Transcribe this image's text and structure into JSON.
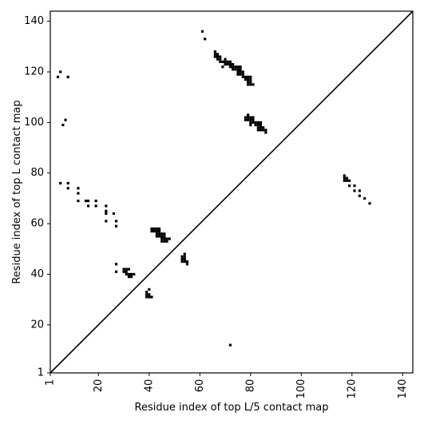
{
  "chart_data": {
    "type": "scatter",
    "title": "",
    "xlabel": "Residue index of top L/5 contact map",
    "ylabel": "Residue index of top L contact map",
    "xlim": [
      1,
      144
    ],
    "ylim": [
      1,
      144
    ],
    "x_ticks": [
      1,
      20,
      40,
      60,
      80,
      100,
      120,
      140
    ],
    "y_ticks": [
      1,
      20,
      40,
      60,
      80,
      100,
      120,
      140
    ],
    "x_tick_labels": [
      "1",
      "20",
      "40",
      "60",
      "80",
      "100",
      "120",
      "140"
    ],
    "y_tick_labels": [
      "1",
      "20",
      "40",
      "60",
      "80",
      "100",
      "120",
      "140"
    ],
    "x_tick_rotation_deg": -90,
    "grid": false,
    "diagonal_line": true,
    "marker": "square",
    "color": "#000000",
    "series": [
      {
        "name": "",
        "description_region": "upper-left triangle (top L contacts)",
        "points": [
          [
            61,
            136
          ],
          [
            62,
            133
          ],
          [
            66,
            128
          ],
          [
            66,
            127
          ],
          [
            67,
            126
          ],
          [
            67,
            127
          ],
          [
            68,
            126
          ],
          [
            66,
            126
          ],
          [
            67,
            125
          ],
          [
            68,
            125
          ],
          [
            68,
            124
          ],
          [
            69,
            124
          ],
          [
            70,
            125
          ],
          [
            70,
            124
          ],
          [
            71,
            124
          ],
          [
            72,
            124
          ],
          [
            70,
            123
          ],
          [
            71,
            123
          ],
          [
            72,
            123
          ],
          [
            73,
            123
          ],
          [
            69,
            122
          ],
          [
            72,
            122
          ],
          [
            73,
            122
          ],
          [
            74,
            122
          ],
          [
            75,
            122
          ],
          [
            76,
            122
          ],
          [
            73,
            121
          ],
          [
            74,
            121
          ],
          [
            75,
            121
          ],
          [
            76,
            121
          ],
          [
            75,
            120
          ],
          [
            76,
            120
          ],
          [
            77,
            120
          ],
          [
            75,
            119
          ],
          [
            76,
            119
          ],
          [
            77,
            119
          ],
          [
            77,
            118
          ],
          [
            78,
            118
          ],
          [
            79,
            118
          ],
          [
            80,
            118
          ],
          [
            78,
            117
          ],
          [
            79,
            117
          ],
          [
            80,
            117
          ],
          [
            79,
            116
          ],
          [
            80,
            116
          ],
          [
            79,
            115
          ],
          [
            80,
            115
          ],
          [
            81,
            115
          ],
          [
            79,
            103
          ],
          [
            78,
            102
          ],
          [
            79,
            102
          ],
          [
            80,
            102
          ],
          [
            81,
            102
          ],
          [
            78,
            101
          ],
          [
            79,
            101
          ],
          [
            80,
            101
          ],
          [
            81,
            101
          ],
          [
            80,
            100
          ],
          [
            81,
            100
          ],
          [
            82,
            100
          ],
          [
            83,
            100
          ],
          [
            84,
            100
          ],
          [
            80,
            99
          ],
          [
            83,
            99
          ],
          [
            82,
            99
          ],
          [
            84,
            99
          ],
          [
            83,
            98
          ],
          [
            84,
            98
          ],
          [
            85,
            98
          ],
          [
            83,
            97
          ],
          [
            84,
            97
          ],
          [
            85,
            97
          ],
          [
            86,
            97
          ],
          [
            86,
            96
          ],
          [
            5,
            120
          ],
          [
            4,
            118
          ],
          [
            8,
            118
          ],
          [
            7,
            101
          ],
          [
            6,
            99
          ],
          [
            5,
            76
          ],
          [
            8,
            76
          ],
          [
            8,
            74
          ],
          [
            12,
            74
          ],
          [
            12,
            72
          ],
          [
            12,
            69
          ],
          [
            15,
            69
          ],
          [
            16,
            69
          ],
          [
            19,
            69
          ],
          [
            16,
            67
          ],
          [
            19,
            67
          ],
          [
            23,
            67
          ],
          [
            23,
            65
          ],
          [
            26,
            64
          ],
          [
            23,
            64
          ],
          [
            23,
            61
          ],
          [
            27,
            61
          ],
          [
            27,
            59
          ],
          [
            27,
            44
          ],
          [
            27,
            41
          ],
          [
            30,
            42
          ],
          [
            31,
            42
          ],
          [
            32,
            42
          ],
          [
            30,
            41
          ],
          [
            31,
            41
          ],
          [
            31,
            40
          ],
          [
            32,
            40
          ],
          [
            33,
            40
          ],
          [
            34,
            40
          ],
          [
            32,
            39
          ],
          [
            33,
            39
          ],
          [
            40,
            34
          ],
          [
            39,
            33
          ],
          [
            39,
            32
          ],
          [
            40,
            32
          ],
          [
            39,
            31
          ],
          [
            40,
            31
          ],
          [
            41,
            31
          ]
        ]
      },
      {
        "name": "",
        "description_region": "lower-right triangle (top L/5 contacts)",
        "points": [
          [
            41,
            58
          ],
          [
            42,
            58
          ],
          [
            43,
            58
          ],
          [
            44,
            58
          ],
          [
            41,
            57
          ],
          [
            42,
            57
          ],
          [
            43,
            57
          ],
          [
            44,
            57
          ],
          [
            43,
            56
          ],
          [
            44,
            56
          ],
          [
            45,
            56
          ],
          [
            46,
            56
          ],
          [
            43,
            55
          ],
          [
            44,
            55
          ],
          [
            45,
            55
          ],
          [
            46,
            55
          ],
          [
            45,
            54
          ],
          [
            46,
            54
          ],
          [
            47,
            54
          ],
          [
            48,
            54
          ],
          [
            45,
            53
          ],
          [
            46,
            53
          ],
          [
            47,
            53
          ],
          [
            54,
            48
          ],
          [
            53,
            47
          ],
          [
            54,
            47
          ],
          [
            53,
            46
          ],
          [
            54,
            46
          ],
          [
            53,
            45
          ],
          [
            54,
            45
          ],
          [
            55,
            45
          ],
          [
            55,
            44
          ],
          [
            117,
            79
          ],
          [
            117,
            78
          ],
          [
            118,
            78
          ],
          [
            117,
            77
          ],
          [
            118,
            77
          ],
          [
            119,
            77
          ],
          [
            119,
            75
          ],
          [
            121,
            75
          ],
          [
            121,
            73
          ],
          [
            123,
            73
          ],
          [
            123,
            71
          ],
          [
            125,
            70
          ],
          [
            127,
            68
          ],
          [
            72,
            12
          ]
        ]
      }
    ]
  }
}
